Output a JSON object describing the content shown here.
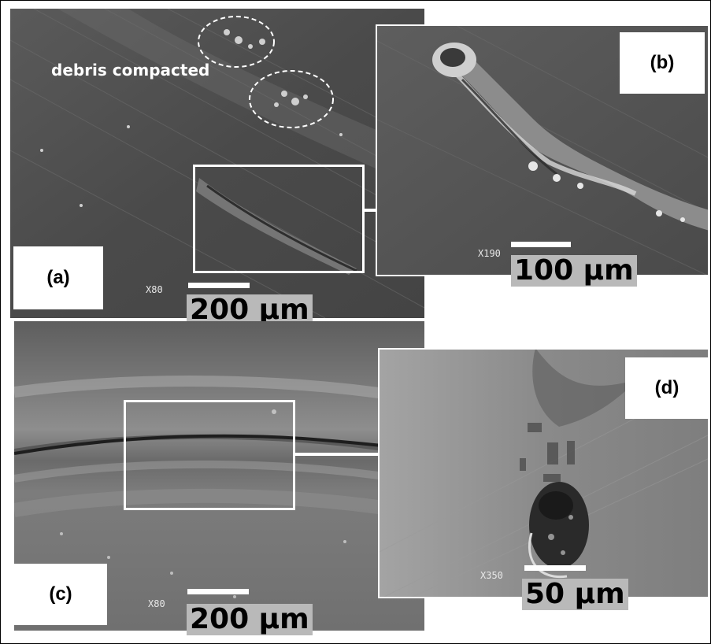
{
  "panels": {
    "a": {
      "label": "(a)",
      "magnification": "X80",
      "scale": "200 µm",
      "annotation": "debris compacted"
    },
    "b": {
      "label": "(b)",
      "magnification": "X190",
      "scale": "100 µm"
    },
    "c": {
      "label": "(c)",
      "magnification": "X80",
      "scale": "200 µm"
    },
    "d": {
      "label": "(d)",
      "magnification": "X350",
      "scale": "50 µm"
    }
  },
  "colors": {
    "sem_dark": "#4a4a4a",
    "sem_mid": "#6e6e6e",
    "sem_light": "#9a9a9a",
    "scale_label_bg": "#b9b9b9",
    "outline": "#ffffff"
  }
}
